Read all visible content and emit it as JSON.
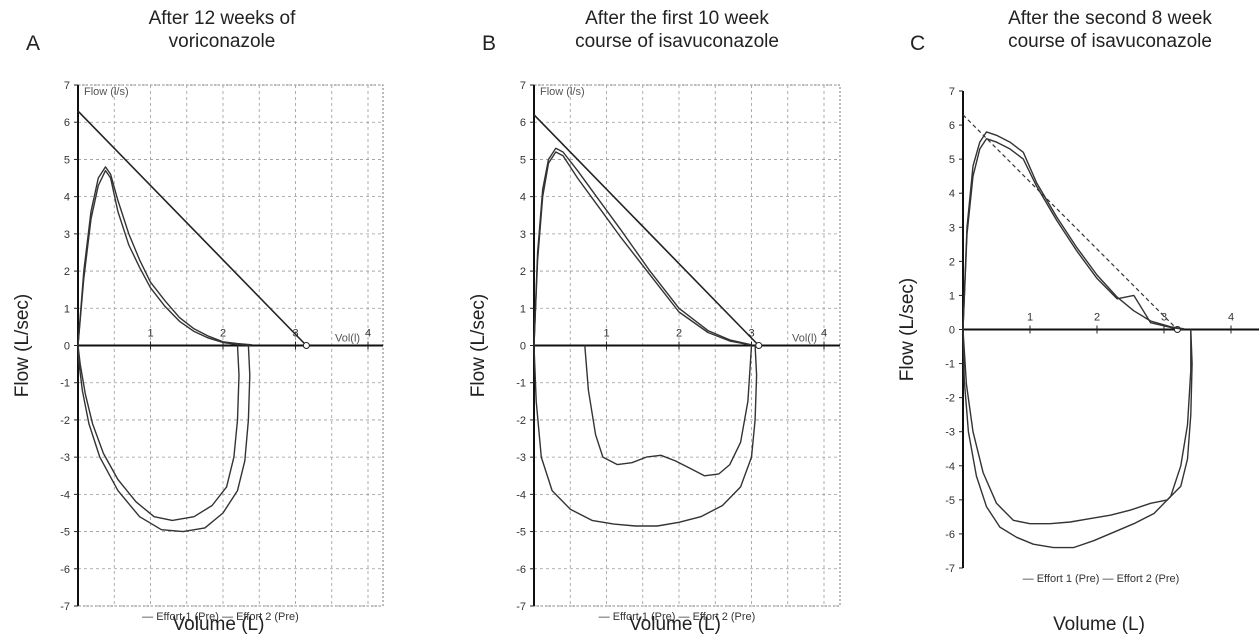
{
  "chart_data": [
    {
      "type": "line",
      "letter": "A",
      "title_lines": [
        "After 12 weeks of",
        "voriconazole"
      ],
      "xlabel": "Volume (L)",
      "ylabel": "Flow (L/sec)",
      "xlim": [
        0,
        4.5
      ],
      "ylim": [
        -7,
        7
      ],
      "xticks": [
        1,
        2,
        3,
        4
      ],
      "yticks": [
        -7,
        -6,
        -5,
        -4,
        -3,
        -2,
        -1,
        0,
        1,
        2,
        3,
        4,
        5,
        6,
        7
      ],
      "grid": true,
      "inset_labels": [
        "Flow (l/s)",
        "Vol(l)"
      ],
      "legend": [
        "Effort 1 (Pre)",
        "Effort 2 (Pre)"
      ],
      "predicted_line": [
        [
          0,
          6.3
        ],
        [
          3.15,
          0
        ]
      ],
      "series": [
        {
          "x": [
            0,
            0.08,
            0.18,
            0.28,
            0.38,
            0.45,
            0.55,
            0.7,
            0.85,
            1.0,
            1.2,
            1.4,
            1.6,
            1.8,
            2.0,
            2.2,
            2.4
          ],
          "y": [
            0,
            2.0,
            3.6,
            4.5,
            4.8,
            4.6,
            3.9,
            3.0,
            2.3,
            1.7,
            1.2,
            0.75,
            0.45,
            0.25,
            0.1,
            0.05,
            0.02
          ]
        },
        {
          "x": [
            0,
            0.08,
            0.18,
            0.28,
            0.38,
            0.45,
            0.55,
            0.7,
            0.85,
            1.0,
            1.2,
            1.4,
            1.6,
            1.8,
            2.0,
            2.2,
            2.4
          ],
          "y": [
            0,
            1.8,
            3.4,
            4.3,
            4.7,
            4.5,
            3.6,
            2.7,
            2.1,
            1.55,
            1.05,
            0.65,
            0.38,
            0.2,
            0.08,
            0.03,
            0.01
          ]
        },
        {
          "x": [
            2.2,
            2.22,
            2.2,
            2.15,
            2.05,
            1.85,
            1.6,
            1.3,
            1.05,
            0.8,
            0.55,
            0.35,
            0.2,
            0.1,
            0.03,
            0
          ],
          "y": [
            0,
            -0.8,
            -2.0,
            -3.0,
            -3.8,
            -4.3,
            -4.6,
            -4.7,
            -4.6,
            -4.2,
            -3.6,
            -2.9,
            -2.1,
            -1.3,
            -0.5,
            0
          ]
        },
        {
          "x": [
            2.35,
            2.37,
            2.35,
            2.3,
            2.2,
            2.0,
            1.75,
            1.45,
            1.15,
            0.85,
            0.55,
            0.3,
            0.15,
            0.06,
            0.01,
            0
          ],
          "y": [
            0,
            -0.8,
            -2.0,
            -3.1,
            -3.9,
            -4.5,
            -4.9,
            -5.0,
            -4.95,
            -4.6,
            -3.9,
            -3.0,
            -2.1,
            -1.2,
            -0.4,
            0
          ]
        }
      ]
    },
    {
      "type": "line",
      "letter": "B",
      "title_lines": [
        "After the first 10 week",
        "course of isavuconazole"
      ],
      "xlabel": "Volume (L)",
      "ylabel": "Flow (L/sec)",
      "xlim": [
        0,
        4.5
      ],
      "ylim": [
        -7,
        7
      ],
      "xticks": [
        1,
        2,
        3,
        4
      ],
      "yticks": [
        -7,
        -6,
        -5,
        -4,
        -3,
        -2,
        -1,
        0,
        1,
        2,
        3,
        4,
        5,
        6,
        7
      ],
      "grid": true,
      "inset_labels": [
        "Flow (l/s)",
        "Vol(l)"
      ],
      "legend": [
        "Effort 1 (Pre)",
        "Effort 2 (Pre)"
      ],
      "predicted_line": [
        [
          0,
          6.2
        ],
        [
          3.1,
          0
        ]
      ],
      "series": [
        {
          "x": [
            0,
            0.05,
            0.12,
            0.2,
            0.3,
            0.4,
            0.6,
            0.9,
            1.2,
            1.6,
            2.0,
            2.4,
            2.7,
            3.0
          ],
          "y": [
            0,
            2.5,
            4.2,
            5.0,
            5.3,
            5.2,
            4.7,
            3.9,
            3.1,
            2.0,
            1.0,
            0.4,
            0.15,
            0.02
          ]
        },
        {
          "x": [
            0,
            0.05,
            0.12,
            0.2,
            0.3,
            0.4,
            0.6,
            0.9,
            1.2,
            1.6,
            2.0,
            2.4,
            2.7,
            3.0
          ],
          "y": [
            0,
            2.3,
            4.0,
            4.9,
            5.2,
            5.1,
            4.5,
            3.7,
            2.9,
            1.9,
            0.9,
            0.35,
            0.12,
            0.01
          ]
        },
        {
          "x": [
            3.05,
            3.07,
            3.05,
            3.0,
            2.85,
            2.6,
            2.3,
            2.0,
            1.7,
            1.4,
            1.1,
            0.8,
            0.5,
            0.25,
            0.1,
            0.03,
            0
          ],
          "y": [
            0,
            -0.8,
            -2.0,
            -3.0,
            -3.8,
            -4.3,
            -4.6,
            -4.75,
            -4.85,
            -4.85,
            -4.8,
            -4.7,
            -4.4,
            -3.9,
            -3.0,
            -1.5,
            0
          ]
        },
        {
          "x": [
            3.0,
            2.95,
            2.85,
            2.7,
            2.55,
            2.35,
            2.15,
            1.95,
            1.75,
            1.55,
            1.35,
            1.15,
            0.95,
            0.85,
            0.75,
            0.7
          ],
          "y": [
            0,
            -1.5,
            -2.6,
            -3.2,
            -3.45,
            -3.5,
            -3.3,
            -3.1,
            -2.95,
            -3.0,
            -3.15,
            -3.2,
            -3.0,
            -2.4,
            -1.2,
            0
          ]
        }
      ]
    },
    {
      "type": "line",
      "letter": "C",
      "title_lines": [
        "After the second 8 week",
        "course of isavuconazole"
      ],
      "xlabel": "Volume (L)",
      "ylabel": "Flow (L/sec)",
      "xlim": [
        0,
        4.5
      ],
      "ylim": [
        -7,
        7
      ],
      "xticks": [
        1,
        2,
        3,
        4
      ],
      "yticks": [
        -7,
        -6,
        -5,
        -4,
        -3,
        -2,
        -1,
        0,
        1,
        2,
        3,
        4,
        5,
        6,
        7
      ],
      "grid": false,
      "inset_labels": [],
      "legend": [
        "Effort 1 (Pre)",
        "Effort 2 (Pre)"
      ],
      "predicted_line": [
        [
          0,
          6.3
        ],
        [
          3.2,
          0
        ]
      ],
      "series": [
        {
          "x": [
            0,
            0.06,
            0.15,
            0.25,
            0.35,
            0.5,
            0.7,
            0.9,
            1.1,
            1.4,
            1.7,
            2.0,
            2.3,
            2.55,
            2.8,
            3.1,
            3.3
          ],
          "y": [
            0,
            3.0,
            4.8,
            5.5,
            5.8,
            5.7,
            5.5,
            5.2,
            4.3,
            3.3,
            2.4,
            1.6,
            0.95,
            0.55,
            0.25,
            0.08,
            0.02
          ]
        },
        {
          "x": [
            0,
            0.06,
            0.15,
            0.25,
            0.35,
            0.5,
            0.7,
            0.9,
            1.1,
            1.4,
            1.7,
            2.0,
            2.3,
            2.55,
            2.8,
            3.1,
            3.3
          ],
          "y": [
            0,
            2.8,
            4.5,
            5.3,
            5.6,
            5.5,
            5.3,
            5.0,
            4.2,
            3.2,
            2.3,
            1.5,
            0.9,
            1.0,
            0.2,
            0.06,
            0.01
          ]
        },
        {
          "x": [
            3.4,
            3.42,
            3.4,
            3.35,
            3.25,
            3.05,
            2.8,
            2.5,
            2.2,
            1.9,
            1.6,
            1.3,
            1.0,
            0.75,
            0.5,
            0.3,
            0.15,
            0.05,
            0
          ],
          "y": [
            0,
            -1.0,
            -2.5,
            -3.8,
            -4.6,
            -5.0,
            -5.1,
            -5.3,
            -5.45,
            -5.55,
            -5.65,
            -5.7,
            -5.7,
            -5.6,
            -5.1,
            -4.2,
            -3.0,
            -1.6,
            0
          ]
        },
        {
          "x": [
            3.4,
            3.4,
            3.35,
            3.25,
            3.1,
            2.85,
            2.55,
            2.25,
            1.95,
            1.65,
            1.35,
            1.05,
            0.8,
            0.55,
            0.35,
            0.2,
            0.08,
            0.02,
            0
          ],
          "y": [
            0,
            -1.2,
            -2.8,
            -4.0,
            -4.9,
            -5.4,
            -5.7,
            -5.95,
            -6.2,
            -6.4,
            -6.4,
            -6.3,
            -6.1,
            -5.8,
            -5.2,
            -4.3,
            -3.0,
            -1.5,
            0
          ]
        }
      ]
    }
  ]
}
